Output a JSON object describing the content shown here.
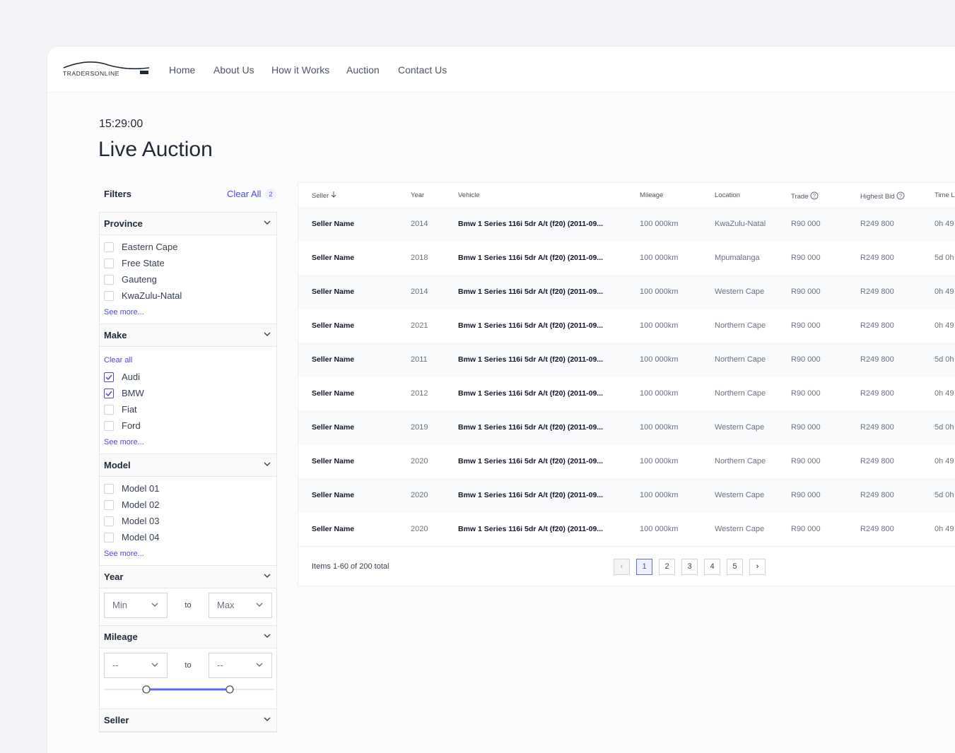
{
  "nav": {
    "logo": "TRADERSONLINE",
    "links": [
      "Home",
      "About Us",
      "How it Works",
      "Auction",
      "Contact Us"
    ]
  },
  "header": {
    "time": "15:29:00",
    "title": "Live Auction"
  },
  "filters": {
    "title": "Filters",
    "clear_all": "Clear All",
    "count": "2",
    "sections": [
      {
        "title": "Province",
        "options": [
          {
            "label": "Eastern Cape",
            "checked": false
          },
          {
            "label": "Free State",
            "checked": false
          },
          {
            "label": "Gauteng",
            "checked": false
          },
          {
            "label": "KwaZulu-Natal",
            "checked": false
          }
        ],
        "see_more": "See more..."
      },
      {
        "title": "Make",
        "clear": "Clear all",
        "options": [
          {
            "label": "Audi",
            "checked": true
          },
          {
            "label": "BMW",
            "checked": true
          },
          {
            "label": "Fiat",
            "checked": false
          },
          {
            "label": "Ford",
            "checked": false
          }
        ],
        "see_more": "See more..."
      },
      {
        "title": "Model",
        "options": [
          {
            "label": "Model 01",
            "checked": false
          },
          {
            "label": "Model 02",
            "checked": false
          },
          {
            "label": "Model 03",
            "checked": false
          },
          {
            "label": "Model 04",
            "checked": false
          }
        ],
        "see_more": "See more..."
      },
      {
        "title": "Year",
        "range": [
          "Min",
          "to",
          "Max"
        ]
      },
      {
        "title": "Mileage",
        "range": [
          "--",
          "to",
          "--"
        ],
        "slider": true
      },
      {
        "title": "Seller"
      }
    ]
  },
  "table": {
    "columns": [
      "Seller",
      "Year",
      "Vehicle",
      "Mileage",
      "Location",
      "Trade",
      "Highest Bid",
      "Time L"
    ],
    "rows": [
      [
        "Seller Name",
        "2014",
        "Bmw 1 Series 116i 5dr A/t (f20) (2011-09...",
        "100 000km",
        "KwaZulu-Natal",
        "R90 000",
        "R249 800",
        "0h 49"
      ],
      [
        "Seller Name",
        "2018",
        "Bmw 1 Series 116i 5dr A/t (f20) (2011-09...",
        "100 000km",
        "Mpumalanga",
        "R90 000",
        "R249 800",
        "5d 0h"
      ],
      [
        "Seller Name",
        "2014",
        "Bmw 1 Series 116i 5dr A/t (f20) (2011-09...",
        "100 000km",
        "Western Cape",
        "R90 000",
        "R249 800",
        "0h 49"
      ],
      [
        "Seller Name",
        "2021",
        "Bmw 1 Series 116i 5dr A/t (f20) (2011-09...",
        "100 000km",
        "Northern Cape",
        "R90 000",
        "R249 800",
        "0h 49"
      ],
      [
        "Seller Name",
        "2011",
        "Bmw 1 Series 116i 5dr A/t (f20) (2011-09...",
        "100 000km",
        "Northern Cape",
        "R90 000",
        "R249 800",
        "5d 0h"
      ],
      [
        "Seller Name",
        "2012",
        "Bmw 1 Series 116i 5dr A/t (f20) (2011-09...",
        "100 000km",
        "Northern Cape",
        "R90 000",
        "R249 800",
        "0h 49"
      ],
      [
        "Seller Name",
        "2019",
        "Bmw 1 Series 116i 5dr A/t (f20) (2011-09...",
        "100 000km",
        "Western Cape",
        "R90 000",
        "R249 800",
        "5d 0h"
      ],
      [
        "Seller Name",
        "2020",
        "Bmw 1 Series 116i 5dr A/t (f20) (2011-09...",
        "100 000km",
        "Northern Cape",
        "R90 000",
        "R249 800",
        "0h 49"
      ],
      [
        "Seller Name",
        "2020",
        "Bmw 1 Series 116i 5dr A/t (f20) (2011-09...",
        "100 000km",
        "Western Cape",
        "R90 000",
        "R249 800",
        "5d 0h"
      ],
      [
        "Seller Name",
        "2020",
        "Bmw 1 Series 116i 5dr A/t (f20) (2011-09...",
        "100 000km",
        "Western Cape",
        "R90 000",
        "R249 800",
        "0h 49"
      ]
    ],
    "footer": "Items 1-60 of 200 total",
    "pages": [
      "1",
      "2",
      "3",
      "4",
      "5"
    ],
    "current_page": 0
  }
}
